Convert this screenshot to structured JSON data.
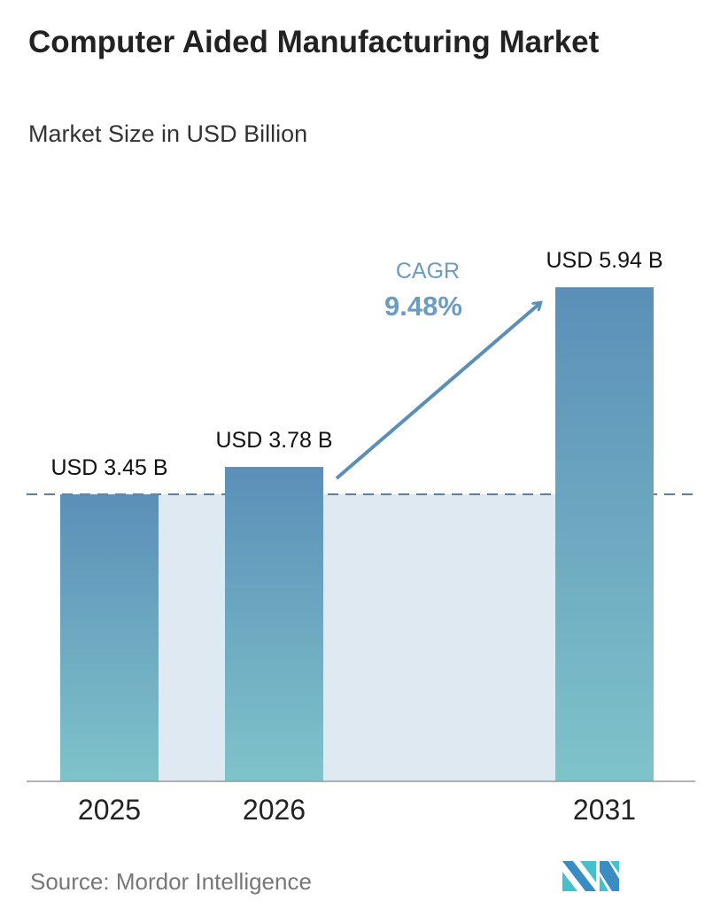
{
  "chart_data": {
    "type": "bar",
    "title": "Computer Aided Manufacturing Market",
    "subtitle": "Market Size in USD Billion",
    "categories": [
      "2025",
      "2026",
      "2031"
    ],
    "values": [
      3.45,
      3.78,
      5.94
    ],
    "data_labels": [
      "USD 3.45 B",
      "USD 3.78 B",
      "USD 5.94 B"
    ],
    "annotation": {
      "label": "CAGR",
      "value": "9.48%"
    },
    "ylim": [
      0,
      6.3
    ],
    "grid": false,
    "colors": {
      "bar_top": "#5b8fb8",
      "bar_bottom": "#7fc3ca",
      "band": "#dfe9f1",
      "accent": "#5b8fb8"
    }
  },
  "source": "Source:  Mordor Intelligence",
  "logo": "Mordor Intelligence logo"
}
